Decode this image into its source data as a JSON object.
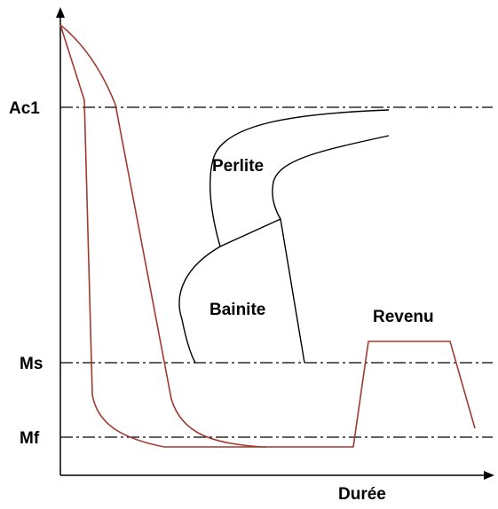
{
  "levels": [
    "Ac1",
    "Ms",
    "Mf"
  ],
  "x_axis_label": "Durée",
  "regions": [
    "Perlite",
    "Bainite",
    "Revenu"
  ]
}
